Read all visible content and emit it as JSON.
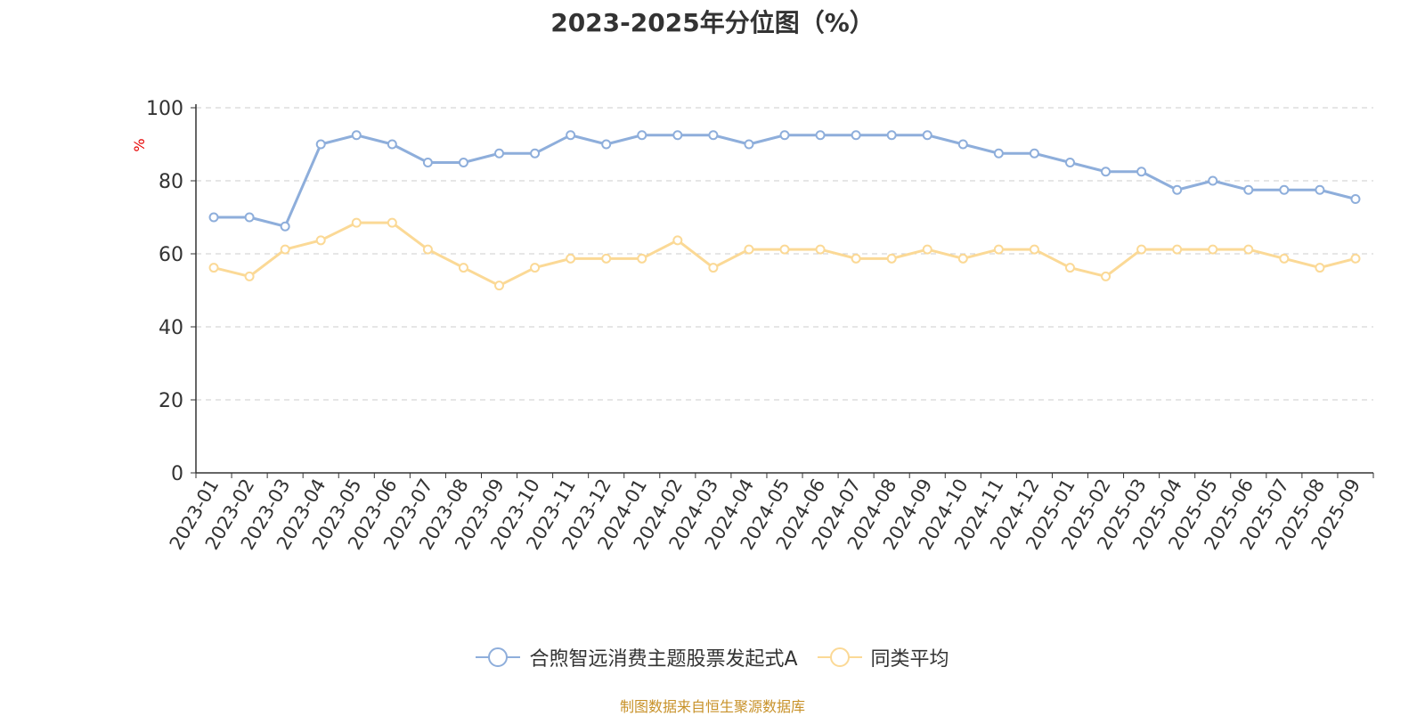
{
  "title": "2023-2025年分位图（%）",
  "source": "制图数据来自恒生聚源数据库",
  "colors": {
    "series_a": "#8eaedb",
    "series_b": "#fbd996",
    "unit": "#e60000",
    "source": "#c8922a"
  },
  "chart_data": {
    "type": "line",
    "title": "2023-2025年分位图（%）",
    "ylabel": "%",
    "ylim": [
      0,
      100
    ],
    "yticks": [
      0,
      20,
      40,
      60,
      80,
      100
    ],
    "grid": true,
    "legend_position": "bottom",
    "categories": [
      "2023-01",
      "2023-02",
      "2023-03",
      "2023-04",
      "2023-05",
      "2023-06",
      "2023-07",
      "2023-08",
      "2023-09",
      "2023-10",
      "2023-11",
      "2023-12",
      "2024-01",
      "2024-02",
      "2024-03",
      "2024-04",
      "2024-05",
      "2024-06",
      "2024-07",
      "2024-08",
      "2024-09",
      "2024-10",
      "2024-11",
      "2024-12",
      "2025-01",
      "2025-02",
      "2025-03",
      "2025-04",
      "2025-05",
      "2025-06",
      "2025-07",
      "2025-08",
      "2025-09"
    ],
    "series": [
      {
        "name": "合煦智远消费主题股票发起式A",
        "values": [
          70,
          70,
          67.5,
          90,
          92.5,
          90,
          85,
          85,
          87.5,
          87.5,
          92.5,
          90,
          92.5,
          92.5,
          92.5,
          90,
          92.5,
          92.5,
          92.5,
          92.5,
          92.5,
          90,
          87.5,
          87.5,
          85,
          82.5,
          82.5,
          77.5,
          80,
          77.5,
          77.5,
          77.5,
          75
        ]
      },
      {
        "name": "同类平均",
        "values": [
          56.2,
          53.8,
          61.2,
          63.7,
          68.5,
          68.5,
          61.2,
          56.2,
          51.3,
          56.2,
          58.7,
          58.7,
          58.7,
          63.7,
          56.2,
          61.2,
          61.2,
          61.2,
          58.7,
          58.7,
          61.2,
          58.7,
          61.2,
          61.2,
          56.2,
          53.8,
          61.2,
          61.2,
          61.2,
          61.2,
          58.7,
          56.2,
          58.7
        ]
      }
    ]
  }
}
